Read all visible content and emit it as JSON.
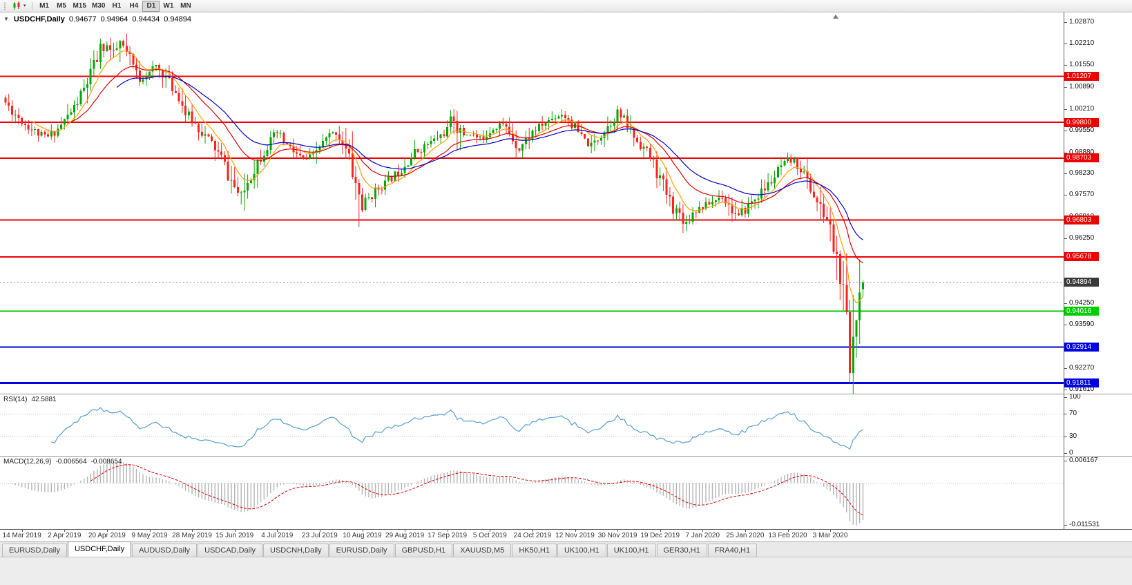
{
  "toolbar": {
    "timeframes": [
      "M1",
      "M5",
      "M15",
      "M30",
      "H1",
      "H4",
      "D1",
      "W1",
      "MN"
    ],
    "active_timeframe": "D1"
  },
  "icons": {
    "one_click_trading": "▼",
    "dropdown_caret": "▾"
  },
  "chart": {
    "title": {
      "symbol_period": "USDCHF,Daily",
      "open": "0.94677",
      "high": "0.94964",
      "low": "0.94434",
      "close": "0.94894"
    },
    "price_axis": {
      "range": [
        0.91483,
        1.03166
      ],
      "ticks": [
        "1.02870",
        "1.02210",
        "1.01550",
        "1.00890",
        "1.00210",
        "0.99550",
        "0.98880",
        "0.98230",
        "0.97570",
        "0.96910",
        "0.96250",
        "0.95590",
        "0.94930",
        "0.94250",
        "0.93590",
        "0.92930",
        "0.92270",
        "0.91610"
      ]
    },
    "levels": [
      {
        "label": "1.01207",
        "value": 1.01207,
        "color": "#ee0000",
        "width": 2
      },
      {
        "label": "0.99800",
        "value": 0.998,
        "color": "#ee0000",
        "width": 2
      },
      {
        "label": "0.98703",
        "value": 0.98703,
        "color": "#ee0000",
        "width": 2
      },
      {
        "label": "0.96803",
        "value": 0.96803,
        "color": "#ee0000",
        "width": 2
      },
      {
        "label": "0.95678",
        "value": 0.95678,
        "color": "#ee0000",
        "width": 2
      },
      {
        "label": "0.94894",
        "value": 0.94894,
        "color": "#3a3a3a",
        "style": "current"
      },
      {
        "label": "0.94016",
        "value": 0.94016,
        "color": "#00cc00",
        "width": 2
      },
      {
        "label": "0.92914",
        "value": 0.92914,
        "color": "#0000e0",
        "width": 2
      },
      {
        "label": "0.91811",
        "value": 0.91811,
        "color": "#0000e0",
        "width": 3
      }
    ],
    "bid_line_color": "#8c8c8c",
    "candles": {
      "count": 263,
      "seed": 11,
      "bull_color": "#00a800",
      "bear_color": "#ff2020",
      "waypoints": [
        [
          0,
          1.004
        ],
        [
          3,
          1.0005
        ],
        [
          6,
          0.9975
        ],
        [
          10,
          0.9945
        ],
        [
          13,
          0.9935
        ],
        [
          16,
          0.996
        ],
        [
          18,
          0.9985
        ],
        [
          21,
          1.0025
        ],
        [
          24,
          1.008
        ],
        [
          27,
          1.015
        ],
        [
          29,
          1.02
        ],
        [
          31,
          1.0215
        ],
        [
          33,
          1.0185
        ],
        [
          35,
          1.0222
        ],
        [
          37,
          1.019
        ],
        [
          39,
          1.015
        ],
        [
          41,
          1.0115
        ],
        [
          44,
          1.013
        ],
        [
          46,
          1.0152
        ],
        [
          48,
          1.013
        ],
        [
          50,
          1.01
        ],
        [
          53,
          1.006
        ],
        [
          55,
          1.001
        ],
        [
          57,
          0.9985
        ],
        [
          60,
          0.995
        ],
        [
          63,
          0.9915
        ],
        [
          66,
          0.987
        ],
        [
          68,
          0.982
        ],
        [
          70,
          0.978
        ],
        [
          72,
          0.9745
        ],
        [
          74,
          0.98
        ],
        [
          77,
          0.986
        ],
        [
          80,
          0.991
        ],
        [
          83,
          0.9945
        ],
        [
          85,
          0.992
        ],
        [
          88,
          0.989
        ],
        [
          91,
          0.9862
        ],
        [
          94,
          0.9878
        ],
        [
          96,
          0.9905
        ],
        [
          99,
          0.9938
        ],
        [
          101,
          0.995
        ],
        [
          103,
          0.9918
        ],
        [
          105,
          0.9868
        ],
        [
          107,
          0.979
        ],
        [
          109,
          0.9725
        ],
        [
          111,
          0.9748
        ],
        [
          114,
          0.9778
        ],
        [
          117,
          0.9802
        ],
        [
          120,
          0.9828
        ],
        [
          122,
          0.9852
        ],
        [
          125,
          0.9886
        ],
        [
          128,
          0.9906
        ],
        [
          131,
          0.9926
        ],
        [
          134,
          0.9946
        ],
        [
          135,
          0.9956
        ],
        [
          137,
          0.9998
        ],
        [
          139,
          0.994
        ],
        [
          142,
          0.9946
        ],
        [
          145,
          0.9926
        ],
        [
          148,
          0.9956
        ],
        [
          151,
          0.9976
        ],
        [
          153,
          0.9962
        ],
        [
          155,
          0.9932
        ],
        [
          157,
          0.9902
        ],
        [
          159,
          0.9926
        ],
        [
          161,
          0.995
        ],
        [
          164,
          0.9972
        ],
        [
          167,
          0.9992
        ],
        [
          170,
          1.0006
        ],
        [
          172,
          0.999
        ],
        [
          174,
          0.9962
        ],
        [
          176,
          0.9932
        ],
        [
          179,
          0.9906
        ],
        [
          181,
          0.9932
        ],
        [
          183,
          0.9956
        ],
        [
          185,
          0.9982
        ],
        [
          187,
          1.0008
        ],
        [
          189,
          0.9986
        ],
        [
          191,
          0.9952
        ],
        [
          193,
          0.9922
        ],
        [
          196,
          0.9892
        ],
        [
          198,
          0.9852
        ],
        [
          200,
          0.9806
        ],
        [
          202,
          0.9762
        ],
        [
          204,
          0.9722
        ],
        [
          206,
          0.97
        ],
        [
          208,
          0.9672
        ],
        [
          210,
          0.9706
        ],
        [
          213,
          0.9722
        ],
        [
          216,
          0.9736
        ],
        [
          219,
          0.9756
        ],
        [
          222,
          0.9712
        ],
        [
          224,
          0.9682
        ],
        [
          226,
          0.9716
        ],
        [
          229,
          0.9746
        ],
        [
          232,
          0.9776
        ],
        [
          235,
          0.9812
        ],
        [
          237,
          0.9842
        ],
        [
          239,
          0.9858
        ],
        [
          241,
          0.9862
        ],
        [
          243,
          0.9838
        ],
        [
          245,
          0.98
        ],
        [
          247,
          0.9756
        ],
        [
          249,
          0.9712
        ],
        [
          251,
          0.9682
        ],
        [
          252,
          0.9652
        ],
        [
          253,
          0.9602
        ],
        [
          254,
          0.956
        ],
        [
          255,
          0.9502
        ],
        [
          256,
          0.9432
        ],
        [
          257,
          0.9332
        ],
        [
          258,
          0.9206
        ],
        [
          259,
          0.9322
        ],
        [
          260,
          0.9442
        ],
        [
          261,
          0.9492
        ],
        [
          262,
          0.94894
        ]
      ],
      "forced": {
        "35": {
          "high": 1.0232
        },
        "108": {
          "low": 0.9659
        },
        "137": {
          "high": 1.002
        },
        "208": {
          "low": 0.9646
        },
        "258": {
          "low": 0.9181
        },
        "261": {
          "high": 0.956
        },
        "262": {
          "open": 0.94677,
          "high": 0.94964,
          "low": 0.94434,
          "close": 0.94894
        }
      }
    },
    "moving_averages": [
      {
        "name": "fast",
        "period": 8,
        "color": "#ffa000"
      },
      {
        "name": "medium",
        "period": 20,
        "color": "#e00000"
      },
      {
        "name": "slow",
        "period": 34,
        "color": "#0000c8"
      }
    ],
    "date_axis": {
      "labels": [
        "14 Mar 2019",
        "2 Apr 2019",
        "20 Apr 2019",
        "9 May 2019",
        "28 May 2019",
        "15 Jun 2019",
        "4 Jul 2019",
        "23 Jul 2019",
        "10 Aug 2019",
        "29 Aug 2019",
        "17 Sep 2019",
        "5 Oct 2019",
        "24 Oct 2019",
        "12 Nov 2019",
        "30 Nov 2019",
        "19 Dec 2019",
        "7 Jan 2020",
        "25 Jan 2020",
        "13 Feb 2020",
        "3 Mar 2020"
      ],
      "first_index": 5,
      "step": 13
    }
  },
  "rsi": {
    "label": "RSI(14)",
    "value": "42.5881",
    "period": 14,
    "range": [
      0,
      100
    ],
    "grid_levels": [
      70,
      30
    ],
    "line_color": "#569fd6",
    "axis_labels": [
      {
        "text": "100",
        "value": 100
      },
      {
        "text": "70",
        "value": 70
      },
      {
        "text": "30",
        "value": 30
      },
      {
        "text": "0",
        "value": 0
      }
    ]
  },
  "macd": {
    "label": "MACD(12,26,9)",
    "main_value": "-0.006564",
    "signal_value": "-0.008654",
    "fast": 12,
    "slow": 26,
    "signal": 9,
    "range": [
      -0.011531,
      0.006167
    ],
    "histogram_color": "#b5b5b5",
    "signal_color": "#dd0000",
    "axis_labels": [
      {
        "text": "0.006167",
        "value": 0.006167
      },
      {
        "text": "-0.011531",
        "value": -0.011531
      }
    ]
  },
  "tabs": [
    {
      "label": "EURUSD,Daily",
      "active": false
    },
    {
      "label": "USDCHF,Daily",
      "active": true
    },
    {
      "label": "AUDUSD,Daily",
      "active": false
    },
    {
      "label": "USDCAD,Daily",
      "active": false
    },
    {
      "label": "USDCNH,Daily",
      "active": false
    },
    {
      "label": "EURUSD,Daily",
      "active": false
    },
    {
      "label": "GBPUSD,H1",
      "active": false
    },
    {
      "label": "XAUUSD,M5",
      "active": false
    },
    {
      "label": "HK50,H1",
      "active": false
    },
    {
      "label": "UK100,H1",
      "active": false
    },
    {
      "label": "UK100,H1",
      "active": false
    },
    {
      "label": "GER30,H1",
      "active": false
    },
    {
      "label": "FRA40,H1",
      "active": false
    }
  ]
}
